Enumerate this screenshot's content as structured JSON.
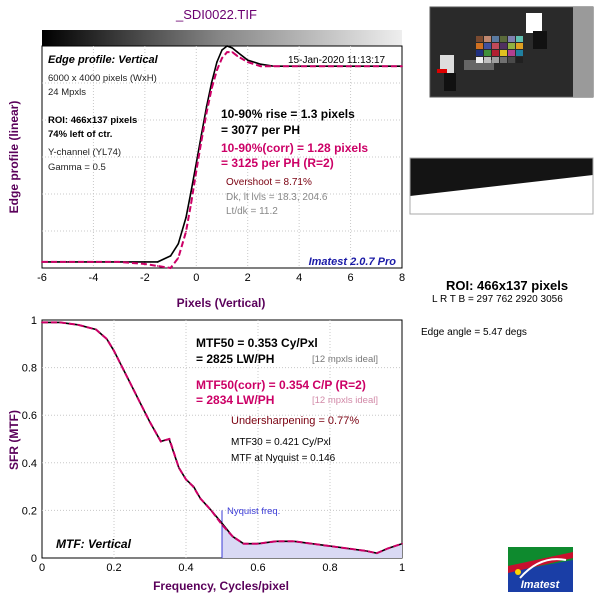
{
  "header": {
    "file_title": "_SDI0022.TIF",
    "timestamp": "15-Jan-2020 11:13:17",
    "brand_note": "Imatest 2.0.7 Pro"
  },
  "colors": {
    "measured": "#000000",
    "corrected": "#cc0066",
    "axis_label": "#5a005a",
    "nyquist": "#3b3bd6",
    "nyquist_fill": "#d9d9f4"
  },
  "edge_panel": {
    "title": "Edge profile: Vertical",
    "info_lines": [
      "6000 x 4000 pixels (WxH)",
      "24 Mpxls"
    ],
    "roi_lines": [
      "ROI: 466x137 pixels",
      "74% left of ctr."
    ],
    "channel_lines": [
      "Y-channel  (YL74)",
      "Gamma = 0.5"
    ],
    "rise": [
      "10-90% rise = 1.3 pixels",
      "= 3077 per PH"
    ],
    "rise_corr": [
      "10-90%(corr) = 1.28 pixels",
      "= 3125 per PH  (R=2)"
    ],
    "overshoot": "Overshoot = 8.71%",
    "dk_lt": [
      "Dk, lt lvls = 18.3, 204.6",
      "Lt/dk = 11.2"
    ]
  },
  "mtf_panel": {
    "title": "MTF: Vertical",
    "mtf50": [
      "MTF50 = 0.353 Cy/Pxl",
      "= 2825 LW/PH"
    ],
    "ideal_note": "[12 mpxls ideal]",
    "mtf50_corr": [
      "MTF50(corr) = 0.354 C/P  (R=2)",
      "= 2834 LW/PH"
    ],
    "ideal_note_corr": "[12 mpxls ideal]",
    "undersharpening": "Undersharpening = 0.77%",
    "mtf30": "MTF30 = 0.421 Cy/Pxl",
    "mtf_nyquist": "MTF at Nyquist = 0.146",
    "nyquist_label": "Nyquist freq."
  },
  "side": {
    "roi_title": "ROI: 466x137 pixels",
    "lrtb": "L R  T B = 297 762  2920 3056",
    "edge_angle": "Edge angle = 5.47 degs",
    "logo_text": "Imatest"
  },
  "chart_data": [
    {
      "type": "line",
      "title": "_SDI0022.TIF",
      "xlabel": "Pixels (Vertical)",
      "ylabel": "Edge profile (linear)",
      "xlim": [
        -6,
        8
      ],
      "ylim": [
        0,
        1.1
      ],
      "xticks": [
        -6,
        -4,
        -2,
        0,
        2,
        4,
        6,
        8
      ],
      "grid": true,
      "series": [
        {
          "color": "#000000",
          "x": [
            -6,
            -5,
            -4,
            -3,
            -2,
            -1.5,
            -1,
            -0.7,
            -0.4,
            -0.2,
            0,
            0.2,
            0.4,
            0.6,
            0.8,
            1.0,
            1.2,
            1.4,
            1.6,
            2.0,
            2.5,
            3,
            4,
            5,
            6,
            7,
            8
          ],
          "y": [
            0.03,
            0.03,
            0.03,
            0.03,
            0.03,
            0.03,
            0.06,
            0.12,
            0.25,
            0.38,
            0.52,
            0.66,
            0.8,
            0.92,
            1.02,
            1.08,
            1.1,
            1.09,
            1.07,
            1.03,
            1.01,
            1.0,
            1.0,
            1.0,
            1.0,
            1.0,
            1.0
          ]
        },
        {
          "color": "#cc0066",
          "dashed": true,
          "x": [
            -6,
            -5,
            -4,
            -3,
            -2,
            -1.5,
            -1,
            -0.7,
            -0.4,
            -0.2,
            0,
            0.2,
            0.4,
            0.6,
            0.8,
            1.0,
            1.2,
            1.4,
            1.6,
            2.0,
            2.5,
            3,
            4,
            5,
            6,
            7,
            8
          ],
          "y": [
            0.03,
            0.03,
            0.03,
            0.03,
            0.02,
            0.01,
            0.0,
            0.05,
            0.18,
            0.32,
            0.48,
            0.63,
            0.77,
            0.89,
            0.98,
            1.04,
            1.07,
            1.07,
            1.05,
            1.02,
            1.0,
            1.0,
            1.0,
            1.0,
            1.0,
            1.0,
            1.0
          ]
        }
      ]
    },
    {
      "type": "line",
      "title": "",
      "xlabel": "Frequency, Cycles/pixel",
      "ylabel": "SFR (MTF)",
      "xlim": [
        0,
        1
      ],
      "ylim": [
        0,
        1
      ],
      "xticks": [
        0,
        0.2,
        0.4,
        0.6,
        0.8,
        1
      ],
      "yticks": [
        0,
        0.2,
        0.4,
        0.6,
        0.8,
        1
      ],
      "grid": true,
      "nyquist": 0.5,
      "series": [
        {
          "color": "#000000",
          "x": [
            0,
            0.05,
            0.1,
            0.15,
            0.18,
            0.2,
            0.22,
            0.25,
            0.28,
            0.3,
            0.33,
            0.353,
            0.38,
            0.4,
            0.421,
            0.44,
            0.47,
            0.5,
            0.53,
            0.56,
            0.6,
            0.65,
            0.7,
            0.75,
            0.8,
            0.85,
            0.9,
            0.93,
            0.96,
            1.0
          ],
          "y": [
            0.99,
            0.99,
            0.98,
            0.96,
            0.92,
            0.87,
            0.81,
            0.72,
            0.63,
            0.57,
            0.49,
            0.5,
            0.38,
            0.33,
            0.3,
            0.25,
            0.2,
            0.146,
            0.09,
            0.06,
            0.06,
            0.07,
            0.07,
            0.06,
            0.05,
            0.04,
            0.03,
            0.02,
            0.04,
            0.06
          ]
        },
        {
          "color": "#cc0066",
          "dashed": true,
          "x": [
            0,
            0.05,
            0.1,
            0.15,
            0.18,
            0.2,
            0.22,
            0.25,
            0.28,
            0.3,
            0.33,
            0.354,
            0.38,
            0.4,
            0.42,
            0.44,
            0.47,
            0.5,
            0.53,
            0.56,
            0.6,
            0.65,
            0.7,
            0.75,
            0.8,
            0.85,
            0.9,
            0.93,
            0.96,
            1.0
          ],
          "y": [
            0.99,
            0.99,
            0.98,
            0.96,
            0.92,
            0.87,
            0.81,
            0.72,
            0.63,
            0.57,
            0.49,
            0.5,
            0.38,
            0.33,
            0.3,
            0.25,
            0.2,
            0.14,
            0.09,
            0.06,
            0.06,
            0.07,
            0.07,
            0.06,
            0.05,
            0.04,
            0.03,
            0.02,
            0.04,
            0.06
          ]
        }
      ]
    }
  ]
}
